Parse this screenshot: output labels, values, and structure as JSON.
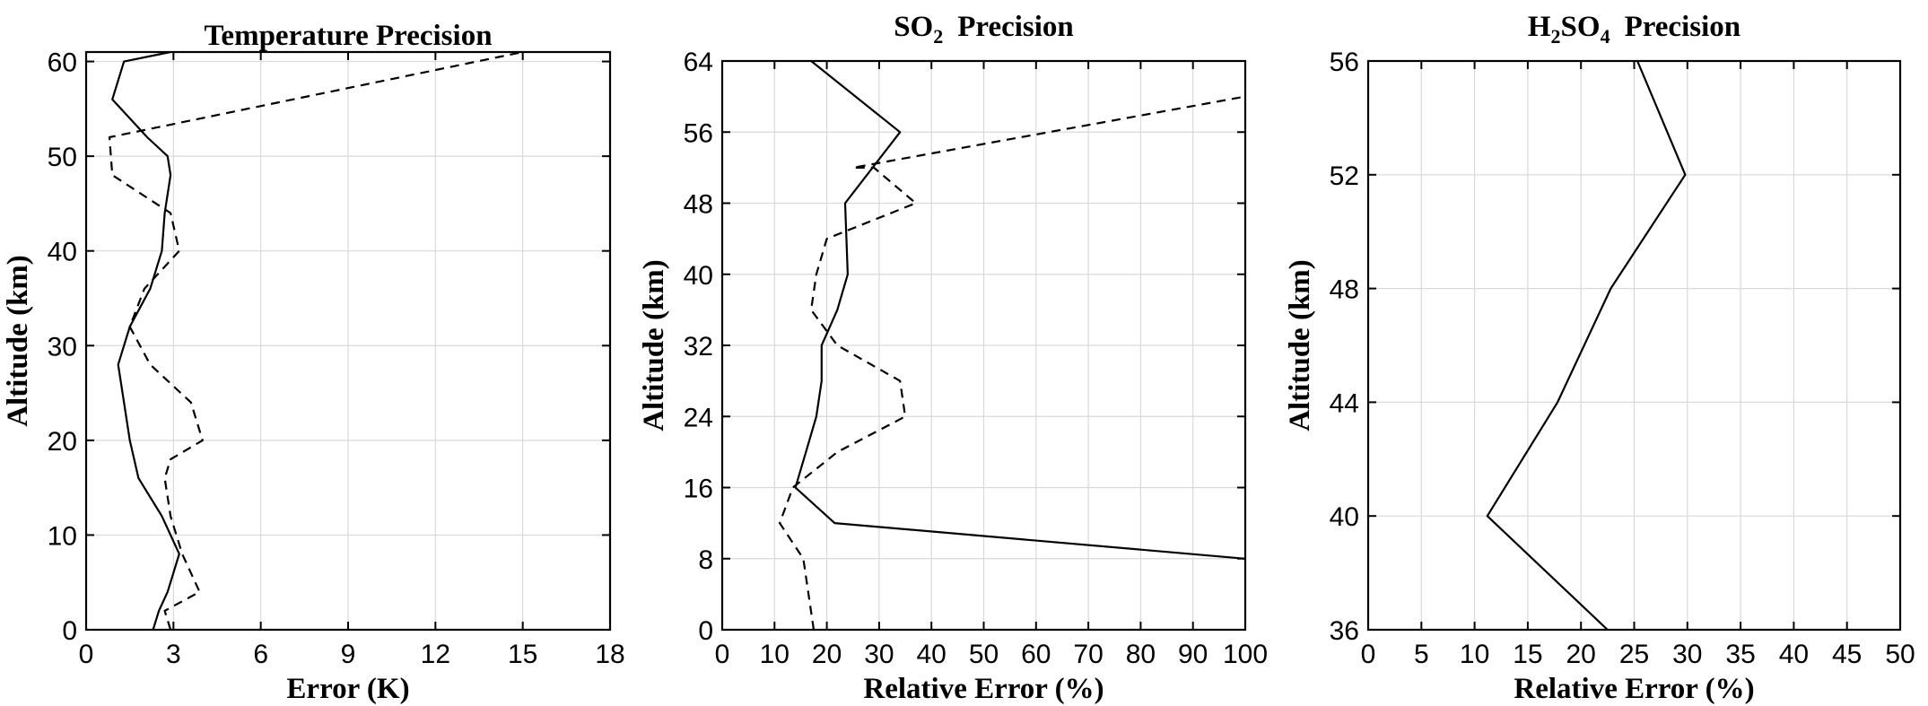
{
  "chart_data": [
    {
      "type": "line",
      "title": "Temperature Precision",
      "xlabel": "Error (K)",
      "ylabel": "Altitude (km)",
      "xlim": [
        0,
        18
      ],
      "ylim": [
        0,
        61
      ],
      "xticks": [
        "0",
        "3",
        "6",
        "9",
        "12",
        "15",
        "18"
      ],
      "yticks": [
        "0",
        "10",
        "20",
        "30",
        "40",
        "50",
        "60"
      ],
      "grid": true,
      "series": [
        {
          "name": "solid",
          "style": "solid",
          "x": [
            2.3,
            2.5,
            2.8,
            3.2,
            2.6,
            1.8,
            1.5,
            1.3,
            1.1,
            1.5,
            2.2,
            2.6,
            2.7,
            2.9,
            2.8,
            2.1,
            0.9,
            1.3,
            2.9
          ],
          "y": [
            0,
            2,
            4,
            8,
            12,
            16,
            20,
            24,
            28,
            32,
            36,
            40,
            44,
            48,
            50,
            52,
            56,
            60,
            61
          ]
        },
        {
          "name": "dashed",
          "style": "dashed",
          "x": [
            2.9,
            2.7,
            3.9,
            3.3,
            2.9,
            2.7,
            2.9,
            4.0,
            3.6,
            2.2,
            1.5,
            2.0,
            3.2,
            2.9,
            0.9,
            0.8,
            15.0
          ],
          "y": [
            0,
            2,
            4,
            8,
            12,
            16,
            18,
            20,
            24,
            28,
            32,
            36,
            40,
            44,
            48,
            52,
            61
          ]
        }
      ]
    },
    {
      "type": "line",
      "title": "SO",
      "title_sub": "2",
      "title_rest": "Precision",
      "xlabel": "Relative Error (%)",
      "ylabel": "Altitude (km)",
      "xlim": [
        0,
        100
      ],
      "ylim": [
        0,
        64
      ],
      "xticks": [
        "0",
        "10",
        "20",
        "30",
        "40",
        "50",
        "60",
        "70",
        "80",
        "90",
        "100"
      ],
      "yticks": [
        "0",
        "8",
        "16",
        "24",
        "32",
        "40",
        "48",
        "56",
        "64"
      ],
      "grid": true,
      "series": [
        {
          "name": "solid",
          "style": "solid",
          "x": [
            100,
            21.5,
            14,
            16,
            18,
            19,
            19,
            22,
            24,
            23.5,
            34,
            17
          ],
          "y": [
            8,
            12,
            16,
            20,
            24,
            28,
            32,
            36,
            40,
            48,
            56,
            64
          ]
        },
        {
          "name": "dashed",
          "style": "dashed",
          "x": [
            17.5,
            15.5,
            11,
            13.5,
            22,
            35,
            34,
            22,
            17,
            18,
            20,
            37,
            29,
            25,
            100
          ],
          "y": [
            0,
            8,
            12,
            16,
            20,
            24,
            28,
            32,
            36,
            40,
            44,
            48,
            52,
            52,
            60
          ]
        }
      ]
    },
    {
      "type": "line",
      "title": "H",
      "title_sub1": "2",
      "title_mid": "SO",
      "title_sub2": "4",
      "title_rest": "Precision",
      "xlabel": "Relative Error (%)",
      "ylabel": "Altitude (km)",
      "xlim": [
        0,
        50
      ],
      "ylim": [
        36,
        56
      ],
      "xticks": [
        "0",
        "5",
        "10",
        "15",
        "20",
        "25",
        "30",
        "35",
        "40",
        "45",
        "50"
      ],
      "yticks": [
        "36",
        "40",
        "44",
        "48",
        "52",
        "56"
      ],
      "grid": true,
      "series": [
        {
          "name": "solid",
          "style": "solid",
          "x": [
            22.5,
            11.2,
            17.8,
            22.8,
            29.8,
            25.3
          ],
          "y": [
            36,
            40,
            44,
            48,
            52,
            56
          ]
        }
      ]
    }
  ]
}
